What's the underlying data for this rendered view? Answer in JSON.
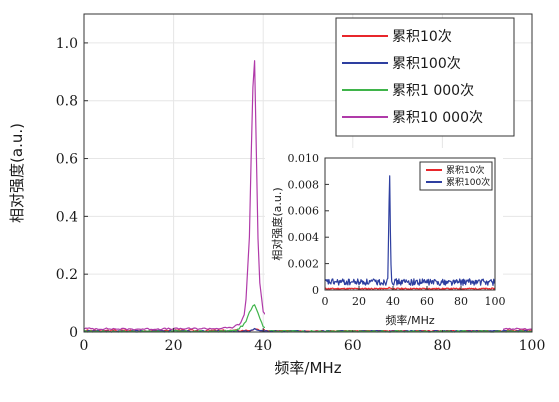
{
  "chart_data": [
    {
      "type": "line",
      "xlabel": "频率/MHz",
      "ylabel": "相对强度(a.u.)",
      "xlim": [
        0,
        100
      ],
      "ylim": [
        0,
        1.1
      ],
      "xticks": [
        "0",
        "20",
        "40",
        "60",
        "80",
        "100"
      ],
      "yticks": [
        "0",
        "0.2",
        "0.4",
        "0.6",
        "0.8",
        "1.0"
      ],
      "grid": true,
      "legend_position": "top-right",
      "series": [
        {
          "name": "累积10次",
          "color": "#e8262b",
          "x": [
            0,
            10,
            20,
            30,
            35,
            37,
            38,
            39,
            41,
            50,
            60,
            70,
            80,
            90,
            100
          ],
          "y": [
            0.005,
            0.005,
            0.005,
            0.005,
            0.005,
            0.006,
            0.009,
            0.006,
            0.005,
            0.005,
            0.005,
            0.005,
            0.005,
            0.005,
            0.005
          ]
        },
        {
          "name": "累积100次",
          "color": "#2e3fa0",
          "x": [
            0,
            10,
            20,
            30,
            35,
            37,
            38,
            39,
            41,
            50,
            60,
            70,
            80,
            90,
            100
          ],
          "y": [
            0.003,
            0.003,
            0.003,
            0.003,
            0.003,
            0.004,
            0.01,
            0.004,
            0.003,
            0.003,
            0.003,
            0.003,
            0.003,
            0.003,
            0.003
          ]
        },
        {
          "name": "累积1 000次",
          "color": "#3fb44a",
          "x": [
            0,
            10,
            20,
            30,
            34,
            36,
            37,
            38,
            39,
            40,
            42,
            50,
            60,
            70,
            80,
            90,
            100
          ],
          "y": [
            0.002,
            0.002,
            0.002,
            0.002,
            0.005,
            0.03,
            0.07,
            0.1,
            0.06,
            0.02,
            0.004,
            0.002,
            0.002,
            0.002,
            0.002,
            0.002,
            0.002
          ]
        },
        {
          "name": "累积10 000次",
          "color": "#b03aa9",
          "x": [
            0,
            10,
            20,
            30,
            33,
            35,
            36,
            37,
            37.5,
            38,
            38.5,
            39,
            40,
            42,
            45,
            50,
            60,
            70,
            80,
            90,
            100
          ],
          "y": [
            0.012,
            0.01,
            0.011,
            0.012,
            0.015,
            0.03,
            0.07,
            0.35,
            0.75,
            1.0,
            0.6,
            0.2,
            0.07,
            0.03,
            0.015,
            0.012,
            0.011,
            0.012,
            0.011,
            0.012,
            0.01
          ]
        }
      ]
    },
    {
      "type": "line",
      "xlabel": "频率/MHz",
      "ylabel": "相对强度(a.u.)",
      "xlim": [
        0,
        100
      ],
      "ylim": [
        0,
        0.01
      ],
      "xticks": [
        "0",
        "20",
        "40",
        "60",
        "80",
        "100"
      ],
      "yticks": [
        "0",
        "0.002",
        "0.004",
        "0.006",
        "0.008",
        "0.010"
      ],
      "legend_position": "top-right",
      "series": [
        {
          "name": "累积10次",
          "color": "#e8262b",
          "x": [
            0,
            20,
            37,
            38,
            39,
            60,
            80,
            100
          ],
          "y": [
            0.0001,
            0.0001,
            0.0001,
            0.0002,
            0.0001,
            0.0001,
            0.0001,
            0.0001
          ]
        },
        {
          "name": "累积100次",
          "color": "#2e3fa0",
          "x": [
            0,
            10,
            20,
            30,
            36,
            37,
            37.5,
            38,
            38.5,
            39,
            40,
            50,
            60,
            70,
            80,
            90,
            100
          ],
          "y": [
            0.0006,
            0.0006,
            0.0006,
            0.0006,
            0.0006,
            0.001,
            0.005,
            0.0095,
            0.004,
            0.001,
            0.0006,
            0.0006,
            0.0006,
            0.0006,
            0.0006,
            0.0006,
            0.0006
          ]
        }
      ]
    }
  ]
}
